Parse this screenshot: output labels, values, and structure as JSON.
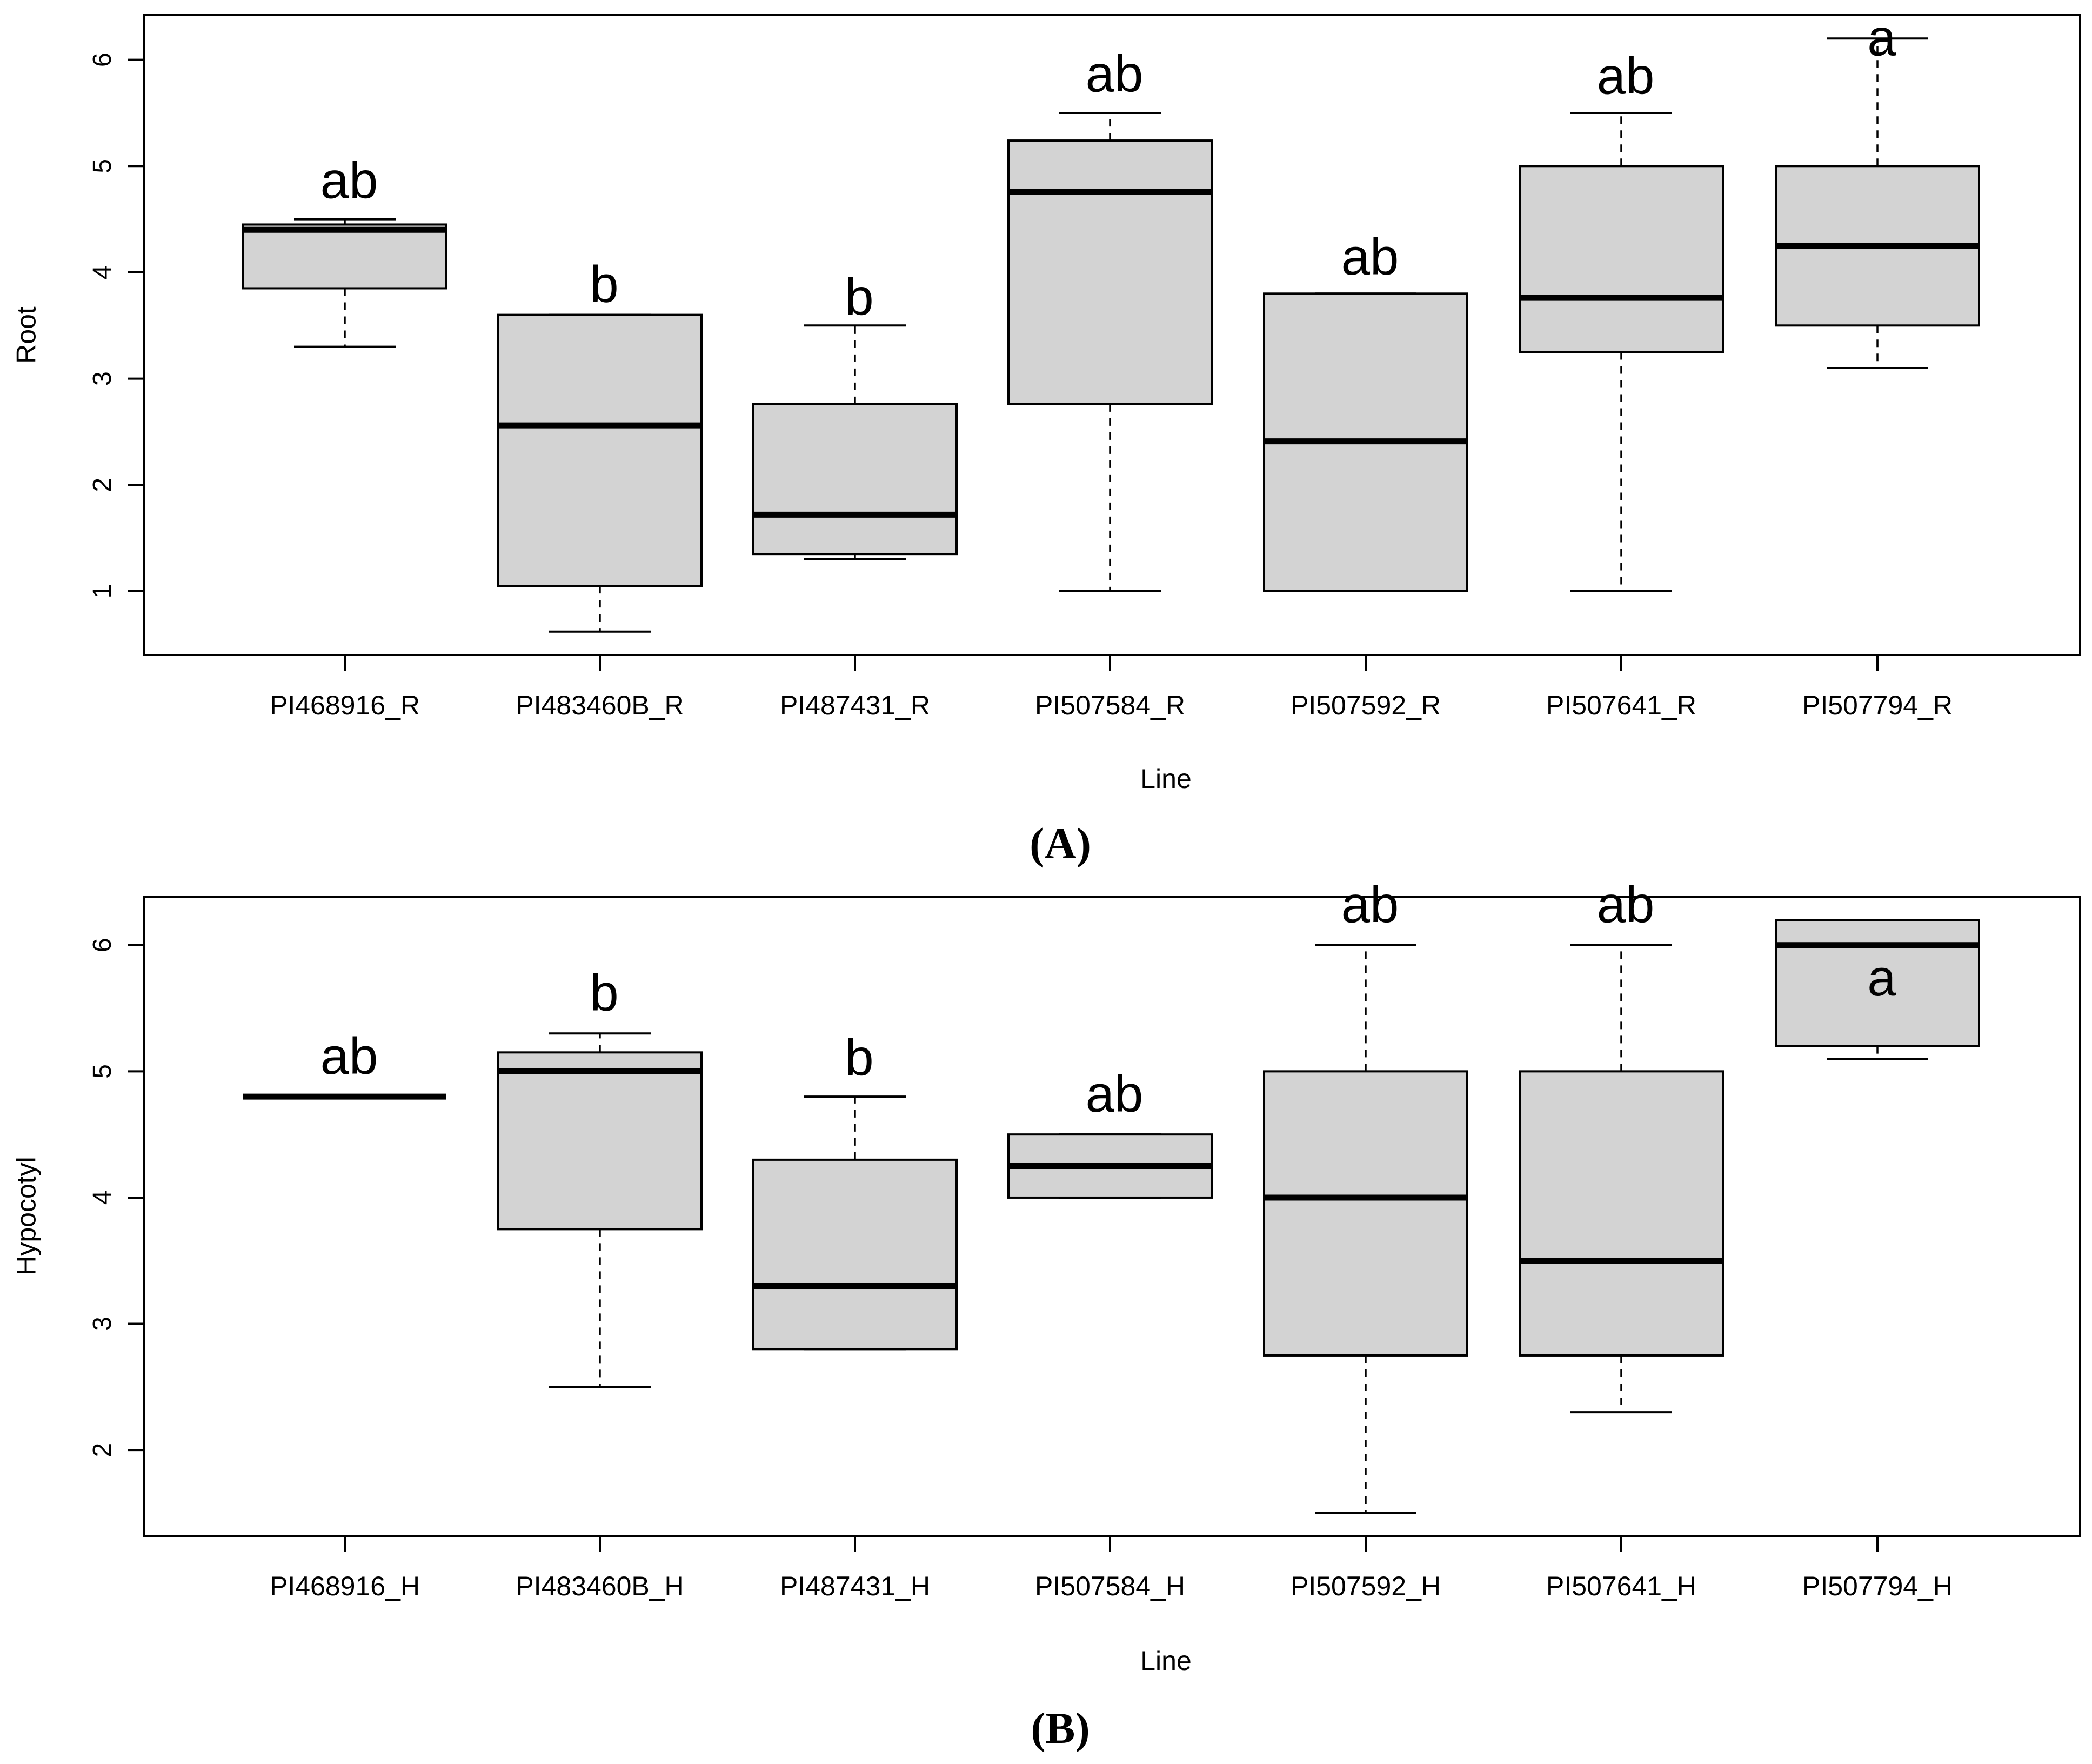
{
  "figure": {
    "panel_labels": [
      "(A)",
      "(B)"
    ]
  },
  "chart_data": [
    {
      "type": "box",
      "panel": "(A)",
      "title": "",
      "xlabel": "Line",
      "ylabel": "Root",
      "ylim": [
        0.4,
        6.42
      ],
      "yticks": [
        1,
        2,
        3,
        4,
        5,
        6
      ],
      "categories": [
        "PI468916_R",
        "PI483460B_R",
        "PI487431_R",
        "PI507584_R",
        "PI507592_R",
        "PI507641_R",
        "PI507794_R"
      ],
      "boxes": [
        {
          "min": 3.3,
          "q1": 3.85,
          "median": 4.4,
          "q3": 4.45,
          "max": 4.5
        },
        {
          "min": 0.62,
          "q1": 1.05,
          "median": 2.56,
          "q3": 3.6,
          "max": 3.6
        },
        {
          "min": 1.3,
          "q1": 1.35,
          "median": 1.72,
          "q3": 2.76,
          "max": 3.5
        },
        {
          "min": 1.0,
          "q1": 2.76,
          "median": 4.76,
          "q3": 5.24,
          "max": 5.5
        },
        {
          "min": 1.0,
          "q1": 1.0,
          "median": 2.41,
          "q3": 3.8,
          "max": 3.8
        },
        {
          "min": 1.0,
          "q1": 3.25,
          "median": 3.76,
          "q3": 5.0,
          "max": 5.5
        },
        {
          "min": 3.1,
          "q1": 3.5,
          "median": 4.25,
          "q3": 5.0,
          "max": 6.2
        }
      ],
      "group_letters": [
        "ab",
        "b",
        "b",
        "ab",
        "ab",
        "ab",
        "a"
      ],
      "letter_y": [
        4.7,
        3.72,
        3.6,
        5.7,
        3.98,
        5.68,
        6.04
      ]
    },
    {
      "type": "box",
      "panel": "(B)",
      "title": "",
      "xlabel": "Line",
      "ylabel": "Hypocotyl",
      "ylim": [
        1.32,
        6.38
      ],
      "yticks": [
        2,
        3,
        4,
        5,
        6
      ],
      "categories": [
        "PI468916_H",
        "PI483460B_H",
        "PI487431_H",
        "PI507584_H",
        "PI507592_H",
        "PI507641_H",
        "PI507794_H"
      ],
      "boxes": [
        {
          "min": 4.8,
          "q1": 4.8,
          "median": 4.8,
          "q3": 4.8,
          "max": 4.8
        },
        {
          "min": 2.5,
          "q1": 3.75,
          "median": 5.0,
          "q3": 5.15,
          "max": 5.3
        },
        {
          "min": 2.8,
          "q1": 2.8,
          "median": 3.3,
          "q3": 4.3,
          "max": 4.8
        },
        {
          "min": 4.0,
          "q1": 4.0,
          "median": 4.25,
          "q3": 4.5,
          "max": 4.5
        },
        {
          "min": 1.5,
          "q1": 2.75,
          "median": 4.0,
          "q3": 5.0,
          "max": 6.0
        },
        {
          "min": 2.3,
          "q1": 2.75,
          "median": 3.5,
          "q3": 5.0,
          "max": 6.0
        },
        {
          "min": 5.1,
          "q1": 5.2,
          "median": 6.0,
          "q3": 6.2,
          "max": 6.2
        }
      ],
      "group_letters": [
        "ab",
        "b",
        "b",
        "ab",
        "ab",
        "ab",
        "a"
      ],
      "letter_y": [
        4.98,
        5.48,
        4.97,
        4.68,
        6.18,
        6.18,
        5.6
      ]
    }
  ]
}
